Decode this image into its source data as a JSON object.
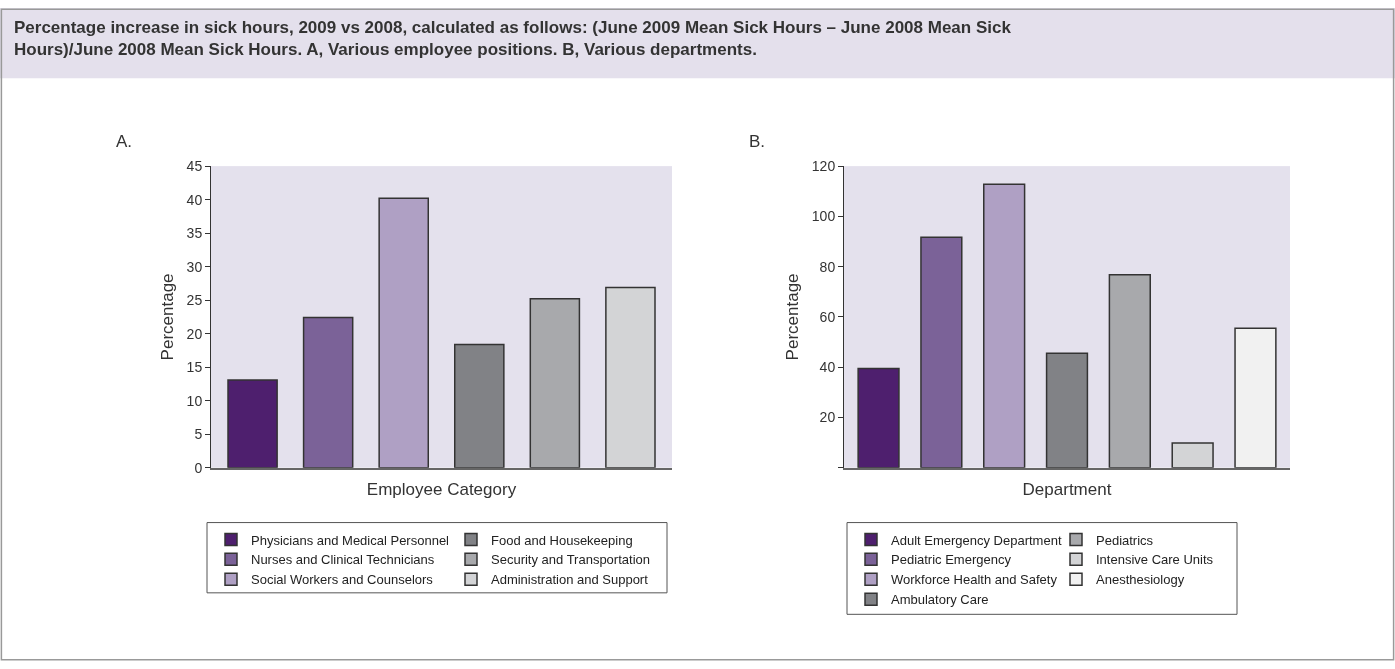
{
  "chart_data": [
    {
      "type": "bar",
      "title": "Percentage increase in sick hours, 2009 vs 2008, calculated as follows: (June 2009 Mean Sick Hours – June 2008 Mean Sick Hours)/June 2008 Mean Sick Hours. A, Various employee positions. B, Various departments.",
      "annotations": [
        "A."
      ],
      "xlabel": "Employee Category",
      "ylabel": "Percentage",
      "categories": [
        null,
        null,
        null,
        null,
        null,
        null
      ],
      "ylim": [
        0,
        45
      ],
      "yticks": [
        0,
        5,
        10,
        15,
        20,
        25,
        30,
        35,
        40,
        45
      ],
      "grid": false,
      "legend": "bottom",
      "series": [
        {
          "name": "Physicians and Medical Personnel",
          "color": "#4e1f6e",
          "values": [
            13.1,
            null,
            null,
            null,
            null,
            null
          ]
        },
        {
          "name": "Nurses and Clinical Technicians",
          "color": "#7b6298",
          "values": [
            null,
            22.4,
            null,
            null,
            null,
            null
          ]
        },
        {
          "name": "Social Workers and Counselors",
          "color": "#afa0c4",
          "values": [
            null,
            null,
            40.2,
            null,
            null,
            null
          ]
        },
        {
          "name": "Food and Housekeeping",
          "color": "#818286",
          "values": [
            null,
            null,
            null,
            18.4,
            null,
            null
          ]
        },
        {
          "name": "Security and Transportation",
          "color": "#a8a9ac",
          "values": [
            null,
            null,
            null,
            null,
            25.2,
            null
          ]
        },
        {
          "name": "Administration and Support",
          "color": "#d3d4d6",
          "values": [
            null,
            null,
            null,
            null,
            null,
            26.9
          ]
        }
      ]
    },
    {
      "type": "bar",
      "annotations": [
        "B."
      ],
      "xlabel": "Department",
      "ylabel": "Percentage",
      "categories": [
        null,
        null,
        null,
        null,
        null,
        null,
        null
      ],
      "ylim": [
        0,
        120
      ],
      "yticks": [
        {
          "value": 0,
          "label": null
        },
        20,
        40,
        60,
        80,
        100,
        120
      ],
      "grid": false,
      "legend": "bottom",
      "series": [
        {
          "name": "Adult Emergency Department",
          "color": "#4e1f6e",
          "values": [
            39.5,
            null,
            null,
            null,
            null,
            null,
            null
          ]
        },
        {
          "name": "Pediatric Emergency",
          "color": "#7b6298",
          "values": [
            null,
            91.7,
            null,
            null,
            null,
            null,
            null
          ]
        },
        {
          "name": "Workforce Health and Safety",
          "color": "#afa0c4",
          "values": [
            null,
            null,
            112.8,
            null,
            null,
            null,
            null
          ]
        },
        {
          "name": "Ambulatory Care",
          "color": "#818286",
          "values": [
            null,
            null,
            null,
            45.6,
            null,
            null,
            null
          ]
        },
        {
          "name": "Pediatrics",
          "color": "#a8a9ac",
          "values": [
            null,
            null,
            null,
            null,
            76.8,
            null,
            null
          ]
        },
        {
          "name": "Intensive Care Units",
          "color": "#d3d4d6",
          "values": [
            null,
            null,
            null,
            null,
            null,
            9.8,
            null
          ]
        },
        {
          "name": "Anesthesiology",
          "color": "#f1f1f1",
          "values": [
            null,
            null,
            null,
            null,
            null,
            null,
            55.5
          ]
        }
      ]
    }
  ]
}
